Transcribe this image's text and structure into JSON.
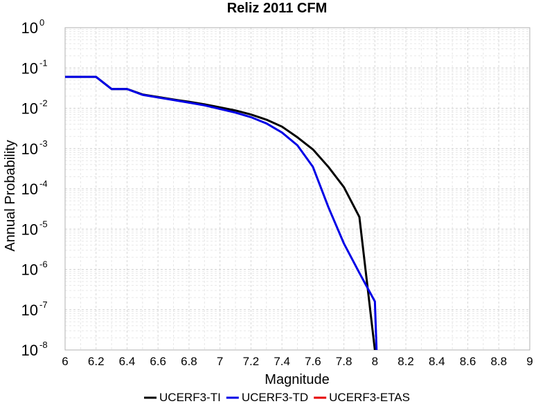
{
  "chart_data": {
    "type": "line",
    "title": "Reliz 2011 CFM",
    "xlabel": "Magnitude",
    "ylabel": "Annual Probability",
    "xlim": [
      6,
      9
    ],
    "ylim": [
      1e-08,
      1
    ],
    "yscale": "log",
    "x_ticks": [
      "6",
      "6.2",
      "6.4",
      "6.6",
      "6.8",
      "7",
      "7.2",
      "7.4",
      "7.6",
      "7.8",
      "8",
      "8.2",
      "8.4",
      "8.6",
      "8.8",
      "9"
    ],
    "y_ticks": [
      {
        "base": "10",
        "exp": "0",
        "value": 1
      },
      {
        "base": "10",
        "exp": "-1",
        "value": 0.1
      },
      {
        "base": "10",
        "exp": "-2",
        "value": 0.01
      },
      {
        "base": "10",
        "exp": "-3",
        "value": 0.001
      },
      {
        "base": "10",
        "exp": "-4",
        "value": 0.0001
      },
      {
        "base": "10",
        "exp": "-5",
        "value": 1e-05
      },
      {
        "base": "10",
        "exp": "-6",
        "value": 1e-06
      },
      {
        "base": "10",
        "exp": "-7",
        "value": 1e-07
      },
      {
        "base": "10",
        "exp": "-8",
        "value": 1e-08
      }
    ],
    "grid": true,
    "legend_position": "bottom",
    "series": [
      {
        "name": "UCERF3-TI",
        "color": "#000000",
        "x": [
          6.0,
          6.1,
          6.2,
          6.3,
          6.4,
          6.5,
          6.6,
          6.7,
          6.8,
          6.9,
          7.0,
          7.1,
          7.2,
          7.3,
          7.4,
          7.5,
          7.6,
          7.7,
          7.8,
          7.9,
          8.0,
          8.02
        ],
        "y": [
          0.06,
          0.06,
          0.06,
          0.03,
          0.03,
          0.022,
          0.019,
          0.0165,
          0.0145,
          0.0125,
          0.0105,
          0.0088,
          0.007,
          0.0052,
          0.0035,
          0.0019,
          0.00095,
          0.00035,
          0.00011,
          2e-05,
          1e-08,
          1e-09
        ]
      },
      {
        "name": "UCERF3-TD",
        "color": "#0000e6",
        "x": [
          6.0,
          6.1,
          6.2,
          6.3,
          6.4,
          6.5,
          6.6,
          6.7,
          6.8,
          6.9,
          7.0,
          7.1,
          7.2,
          7.3,
          7.4,
          7.5,
          7.6,
          7.7,
          7.8,
          7.9,
          8.0,
          8.02
        ],
        "y": [
          0.06,
          0.06,
          0.06,
          0.03,
          0.03,
          0.0215,
          0.0185,
          0.016,
          0.0138,
          0.0118,
          0.0096,
          0.0078,
          0.006,
          0.0042,
          0.0025,
          0.0012,
          0.00035,
          3.5e-05,
          4.4e-06,
          8.2e-07,
          1.6e-07,
          1e-09
        ]
      },
      {
        "name": "UCERF3-ETAS",
        "color": "#e60000",
        "x": [],
        "y": []
      }
    ]
  }
}
